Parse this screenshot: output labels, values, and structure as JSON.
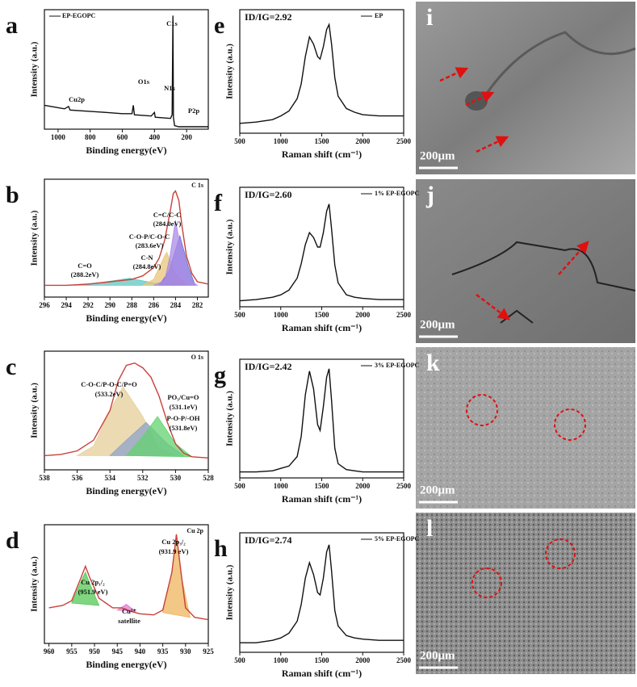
{
  "chart_data": [
    {
      "type": "line",
      "panel_label": "a",
      "xlabel": "Binding energy(eV)",
      "ylabel": "Intensity (a.u.)",
      "xlim": [
        1085,
        65
      ],
      "xticks": [
        1000,
        800,
        600,
        400,
        200
      ],
      "ylim": [
        0,
        100
      ],
      "series": [
        {
          "name": "EP-EGOPC",
          "color": "#111111",
          "x": [
            1085,
            960,
            935,
            925,
            700,
            600,
            540,
            532,
            525,
            420,
            400,
            395,
            300,
            290,
            285,
            282,
            275,
            250,
            133,
            65
          ],
          "values": [
            20,
            17,
            19,
            16,
            14,
            13,
            13,
            20,
            12,
            11,
            14,
            10,
            9,
            12,
            95,
            10,
            3,
            2,
            2,
            2
          ]
        }
      ],
      "annotations": [
        "Cu2p",
        "O1s",
        "N1s",
        "C1s",
        "P2p"
      ]
    },
    {
      "type": "line",
      "panel_label": "b",
      "xlabel": "Binding energy(eV)",
      "ylabel": "Intensity (a.u.)",
      "corner_label": "C 1s",
      "xlim": [
        296,
        281
      ],
      "xticks": [
        296,
        294,
        292,
        290,
        288,
        286,
        284,
        282
      ],
      "ylim": [
        0,
        100
      ],
      "series": [
        {
          "color": "#5fc7c0",
          "fill": true,
          "x": [
            294,
            291,
            288.2,
            286,
            284
          ],
          "values": [
            10,
            12,
            16,
            12,
            10
          ]
        },
        {
          "color": "#e8c67a",
          "fill": true,
          "x": [
            287,
            286,
            285,
            284.8,
            284,
            283
          ],
          "values": [
            10,
            15,
            35,
            38,
            20,
            10
          ]
        },
        {
          "color": "#7b6fd8",
          "fill": true,
          "x": [
            285.5,
            284.6,
            283.6,
            282.8,
            282.2
          ],
          "values": [
            10,
            22,
            52,
            25,
            10
          ]
        },
        {
          "color": "#a98be6",
          "fill": true,
          "x": [
            286,
            285,
            284.5,
            284,
            283.5,
            283,
            282
          ],
          "values": [
            10,
            14,
            35,
            65,
            40,
            16,
            10
          ]
        },
        {
          "color": "#c8413a",
          "x": [
            296,
            294,
            292,
            290,
            289,
            288,
            287,
            286,
            285.5,
            285,
            284.5,
            284.2,
            284,
            283.7,
            283.4,
            283,
            282.5,
            282,
            281
          ],
          "values": [
            10,
            10,
            11,
            13,
            14,
            15,
            18,
            25,
            33,
            48,
            72,
            88,
            90,
            82,
            60,
            35,
            20,
            13,
            11
          ]
        }
      ],
      "annotations": [
        "C=C/C-C",
        "(284.0eV)",
        "C-O-P/C-O-C",
        "(283.6eV)",
        "C-N",
        "(284.8eV)",
        "C=O",
        "(288.2eV)"
      ]
    },
    {
      "type": "line",
      "panel_label": "c",
      "xlabel": "Binding energy(eV)",
      "ylabel": "Intensity (a.u.)",
      "corner_label": "O 1s",
      "xlim": [
        538,
        528
      ],
      "xticks": [
        538,
        536,
        534,
        532,
        530,
        528
      ],
      "ylim": [
        0,
        100
      ],
      "series": [
        {
          "color": "#e6cf98",
          "fill": true,
          "x": [
            536,
            535,
            534,
            533.2,
            532,
            531,
            530
          ],
          "values": [
            12,
            20,
            50,
            70,
            45,
            18,
            12
          ]
        },
        {
          "color": "#8fa3c8",
          "fill": true,
          "x": [
            534,
            533,
            531.8,
            530.5,
            529.5
          ],
          "values": [
            12,
            25,
            40,
            22,
            12
          ]
        },
        {
          "color": "#63d36f",
          "fill": true,
          "x": [
            533,
            532,
            531.1,
            530,
            529
          ],
          "values": [
            12,
            28,
            45,
            22,
            11
          ]
        },
        {
          "color": "#c8413a",
          "x": [
            538,
            537,
            536,
            535,
            534,
            533.5,
            533,
            532.5,
            532,
            531.5,
            531,
            530.5,
            530,
            529.5,
            529,
            528
          ],
          "values": [
            12,
            13,
            16,
            25,
            50,
            75,
            88,
            90,
            86,
            78,
            62,
            40,
            22,
            14,
            11,
            10
          ]
        }
      ],
      "annotations": [
        "C-O-C/P-O-C/P=O",
        "(533.2eV)",
        "PO₃/Cu=O",
        "(531.1eV)",
        "P-O-P/-OH",
        "(531.8eV)"
      ]
    },
    {
      "type": "line",
      "panel_label": "d",
      "xlabel": "Binding energy(eV)",
      "ylabel": "Intensity (a.u.)",
      "corner_label": "Cu 2p",
      "xlim": [
        961,
        925
      ],
      "xticks": [
        960,
        955,
        950,
        945,
        940,
        935,
        930,
        925
      ],
      "ylim": [
        0,
        100
      ],
      "series": [
        {
          "color": "#56c856",
          "fill": true,
          "x": [
            955,
            953,
            952,
            951,
            949
          ],
          "values": [
            34,
            52,
            60,
            50,
            32
          ]
        },
        {
          "color": "#e07ad0",
          "fill": true,
          "x": [
            945,
            943,
            941
          ],
          "values": [
            28,
            33,
            27
          ]
        },
        {
          "color": "#efb45c",
          "fill": true,
          "x": [
            935,
            933,
            932,
            931,
            929
          ],
          "values": [
            26,
            60,
            90,
            58,
            22
          ]
        },
        {
          "color": "#c8413a",
          "x": [
            960,
            957,
            955,
            953,
            952,
            951,
            949,
            946,
            944,
            942,
            940,
            937,
            935,
            933,
            932,
            931,
            930,
            928,
            925
          ],
          "values": [
            30,
            32,
            36,
            55,
            65,
            55,
            38,
            30,
            30,
            27,
            25,
            24,
            28,
            60,
            92,
            60,
            30,
            22,
            20
          ]
        }
      ],
      "annotations": [
        "Cu 2p₃/₂",
        "(931.9 eV)",
        "Cu 2p₁/₂",
        "(951.9 eV)",
        "Cu²⁺",
        "satellite"
      ]
    },
    {
      "type": "line",
      "panel_label": "e",
      "xlabel": "Raman shift (cm⁻¹)",
      "ylabel": "Intensity (a.u.)",
      "annotation": "ID/IG=2.92",
      "xlim": [
        500,
        2500
      ],
      "xticks": [
        500,
        1000,
        1500,
        2000,
        2500
      ],
      "ylim": [
        0,
        100
      ],
      "series": [
        {
          "name": "EP",
          "color": "#111111",
          "x": [
            500,
            700,
            900,
            1000,
            1100,
            1200,
            1250,
            1300,
            1350,
            1400,
            1450,
            1480,
            1520,
            1560,
            1590,
            1620,
            1660,
            1700,
            1800,
            1900,
            2000,
            2200,
            2500
          ],
          "values": [
            8,
            9,
            11,
            14,
            18,
            28,
            40,
            62,
            78,
            72,
            62,
            60,
            70,
            84,
            88,
            72,
            45,
            30,
            20,
            17,
            15,
            14,
            14
          ]
        }
      ]
    },
    {
      "type": "line",
      "panel_label": "f",
      "xlabel": "Raman shift (cm⁻¹)",
      "ylabel": "Intensity (a.u.)",
      "annotation": "ID/IG=2.60",
      "xlim": [
        500,
        2500
      ],
      "xticks": [
        500,
        1000,
        1500,
        2000,
        2500
      ],
      "ylim": [
        0,
        100
      ],
      "series": [
        {
          "name": "1% EP-EGOPC",
          "color": "#111111",
          "x": [
            500,
            700,
            900,
            1000,
            1100,
            1200,
            1250,
            1300,
            1350,
            1400,
            1450,
            1480,
            1520,
            1560,
            1590,
            1620,
            1660,
            1700,
            1800,
            1900,
            2000,
            2200,
            2500
          ],
          "values": [
            5,
            6,
            8,
            10,
            14,
            24,
            36,
            52,
            62,
            58,
            50,
            50,
            62,
            80,
            86,
            65,
            35,
            20,
            10,
            8,
            7,
            6,
            6
          ]
        }
      ]
    },
    {
      "type": "line",
      "panel_label": "g",
      "xlabel": "Raman shift (cm⁻¹)",
      "ylabel": "Intensity (a.u.)",
      "annotation": "ID/IG=2.42",
      "xlim": [
        500,
        2500
      ],
      "xticks": [
        500,
        1000,
        1500,
        2000,
        2500
      ],
      "ylim": [
        0,
        100
      ],
      "series": [
        {
          "name": "3% EP-EGOPC",
          "color": "#111111",
          "x": [
            500,
            700,
            900,
            1000,
            1100,
            1200,
            1250,
            1300,
            1350,
            1400,
            1450,
            1480,
            1520,
            1560,
            1590,
            1620,
            1660,
            1700,
            1800,
            1900,
            2000,
            2200,
            2500
          ],
          "values": [
            5,
            5,
            6,
            8,
            10,
            18,
            35,
            70,
            90,
            75,
            45,
            40,
            60,
            85,
            92,
            65,
            25,
            12,
            7,
            6,
            5,
            5,
            5
          ]
        }
      ]
    },
    {
      "type": "line",
      "panel_label": "h",
      "xlabel": "Raman shift (cm⁻¹)",
      "ylabel": "Intensity (a.u.)",
      "annotation": "ID/IG=2.74",
      "xlim": [
        500,
        2500
      ],
      "xticks": [
        500,
        1000,
        1500,
        2000,
        2500
      ],
      "ylim": [
        0,
        100
      ],
      "series": [
        {
          "name": "5% EP-EGOPC",
          "color": "#111111",
          "x": [
            500,
            700,
            900,
            1000,
            1100,
            1200,
            1250,
            1300,
            1350,
            1400,
            1450,
            1480,
            1520,
            1560,
            1590,
            1620,
            1660,
            1700,
            1800,
            1900,
            2000,
            2200,
            2500
          ],
          "values": [
            8,
            8,
            10,
            12,
            16,
            26,
            40,
            62,
            75,
            65,
            50,
            48,
            62,
            84,
            90,
            68,
            35,
            22,
            14,
            12,
            11,
            10,
            10
          ]
        }
      ]
    }
  ],
  "images": [
    {
      "label": "i",
      "scale_bar": "200μm"
    },
    {
      "label": "j",
      "scale_bar": "200μm"
    },
    {
      "label": "k",
      "scale_bar": "200μm"
    },
    {
      "label": "l",
      "scale_bar": "200μm"
    }
  ]
}
